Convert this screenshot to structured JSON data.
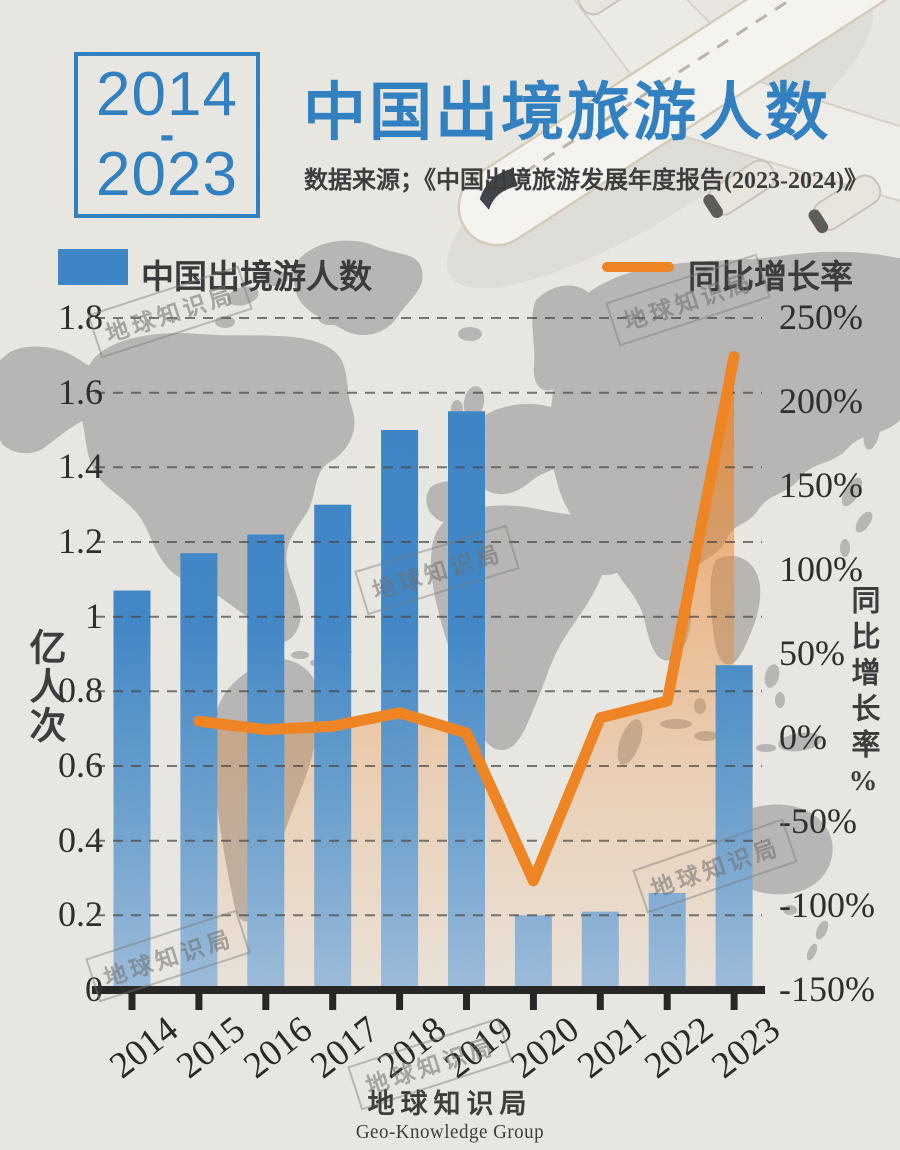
{
  "header": {
    "period_start": "2014",
    "period_dash": "-",
    "period_end": "2023",
    "title": "中国出境旅游人数",
    "subtitle": "数据来源；《中国出境旅游发展年度报告(2023-2024)》"
  },
  "legend": {
    "bars_label": "中国出境游人数",
    "line_label": "同比增长率"
  },
  "watermark_text": "地球知识局",
  "footer": {
    "brand": "地球知识局",
    "brand_en": "Geo-Knowledge Group"
  },
  "colors": {
    "accent_blue": "#2e7fc1",
    "bar_blue": "#3a84c6",
    "bar_fade": "#9dbcdb",
    "line_orange": "#f0831f",
    "map_gray": "#b7b6b4",
    "paper": "#eae8e3",
    "axis_black": "#242322",
    "text_dark": "#3a3a3a"
  },
  "chart_data": {
    "type": "bar+line combo",
    "categories": [
      "2014",
      "2015",
      "2016",
      "2017",
      "2018",
      "2019",
      "2020",
      "2021",
      "2022",
      "2023"
    ],
    "series": [
      {
        "name": "中国出境游人数",
        "type": "bar",
        "axis": "left",
        "unit": "亿人次",
        "values": [
          1.07,
          1.17,
          1.22,
          1.3,
          1.5,
          1.55,
          0.2,
          0.21,
          0.26,
          0.87
        ]
      },
      {
        "name": "同比增长率",
        "type": "line",
        "axis": "right",
        "unit": "%",
        "start_category": "2015",
        "values": [
          10,
          5,
          7,
          15,
          3,
          -85,
          12,
          22,
          227
        ]
      }
    ],
    "left_axis": {
      "title": "亿人次",
      "min": 0,
      "max": 1.8,
      "tick_values": [
        0,
        0.2,
        0.4,
        0.6,
        0.8,
        1,
        1.2,
        1.4,
        1.6,
        1.8
      ],
      "tick_labels": [
        "0",
        "0.2",
        "0.4",
        "0.6",
        "0.8",
        "1",
        "1.2",
        "1.4",
        "1.6",
        "1.8"
      ]
    },
    "right_axis": {
      "title": "同比增长率%",
      "min": -150,
      "max": 250,
      "tick_values": [
        250,
        200,
        150,
        100,
        50,
        0,
        -50,
        -100,
        -150
      ],
      "tick_labels": [
        "250%",
        "200%",
        "150%",
        "100%",
        "50%",
        "0%",
        "-50%",
        "-100%",
        "-150%"
      ]
    },
    "grid": "horizontal dashed lines at left-axis ticks",
    "legend_position": "top"
  }
}
